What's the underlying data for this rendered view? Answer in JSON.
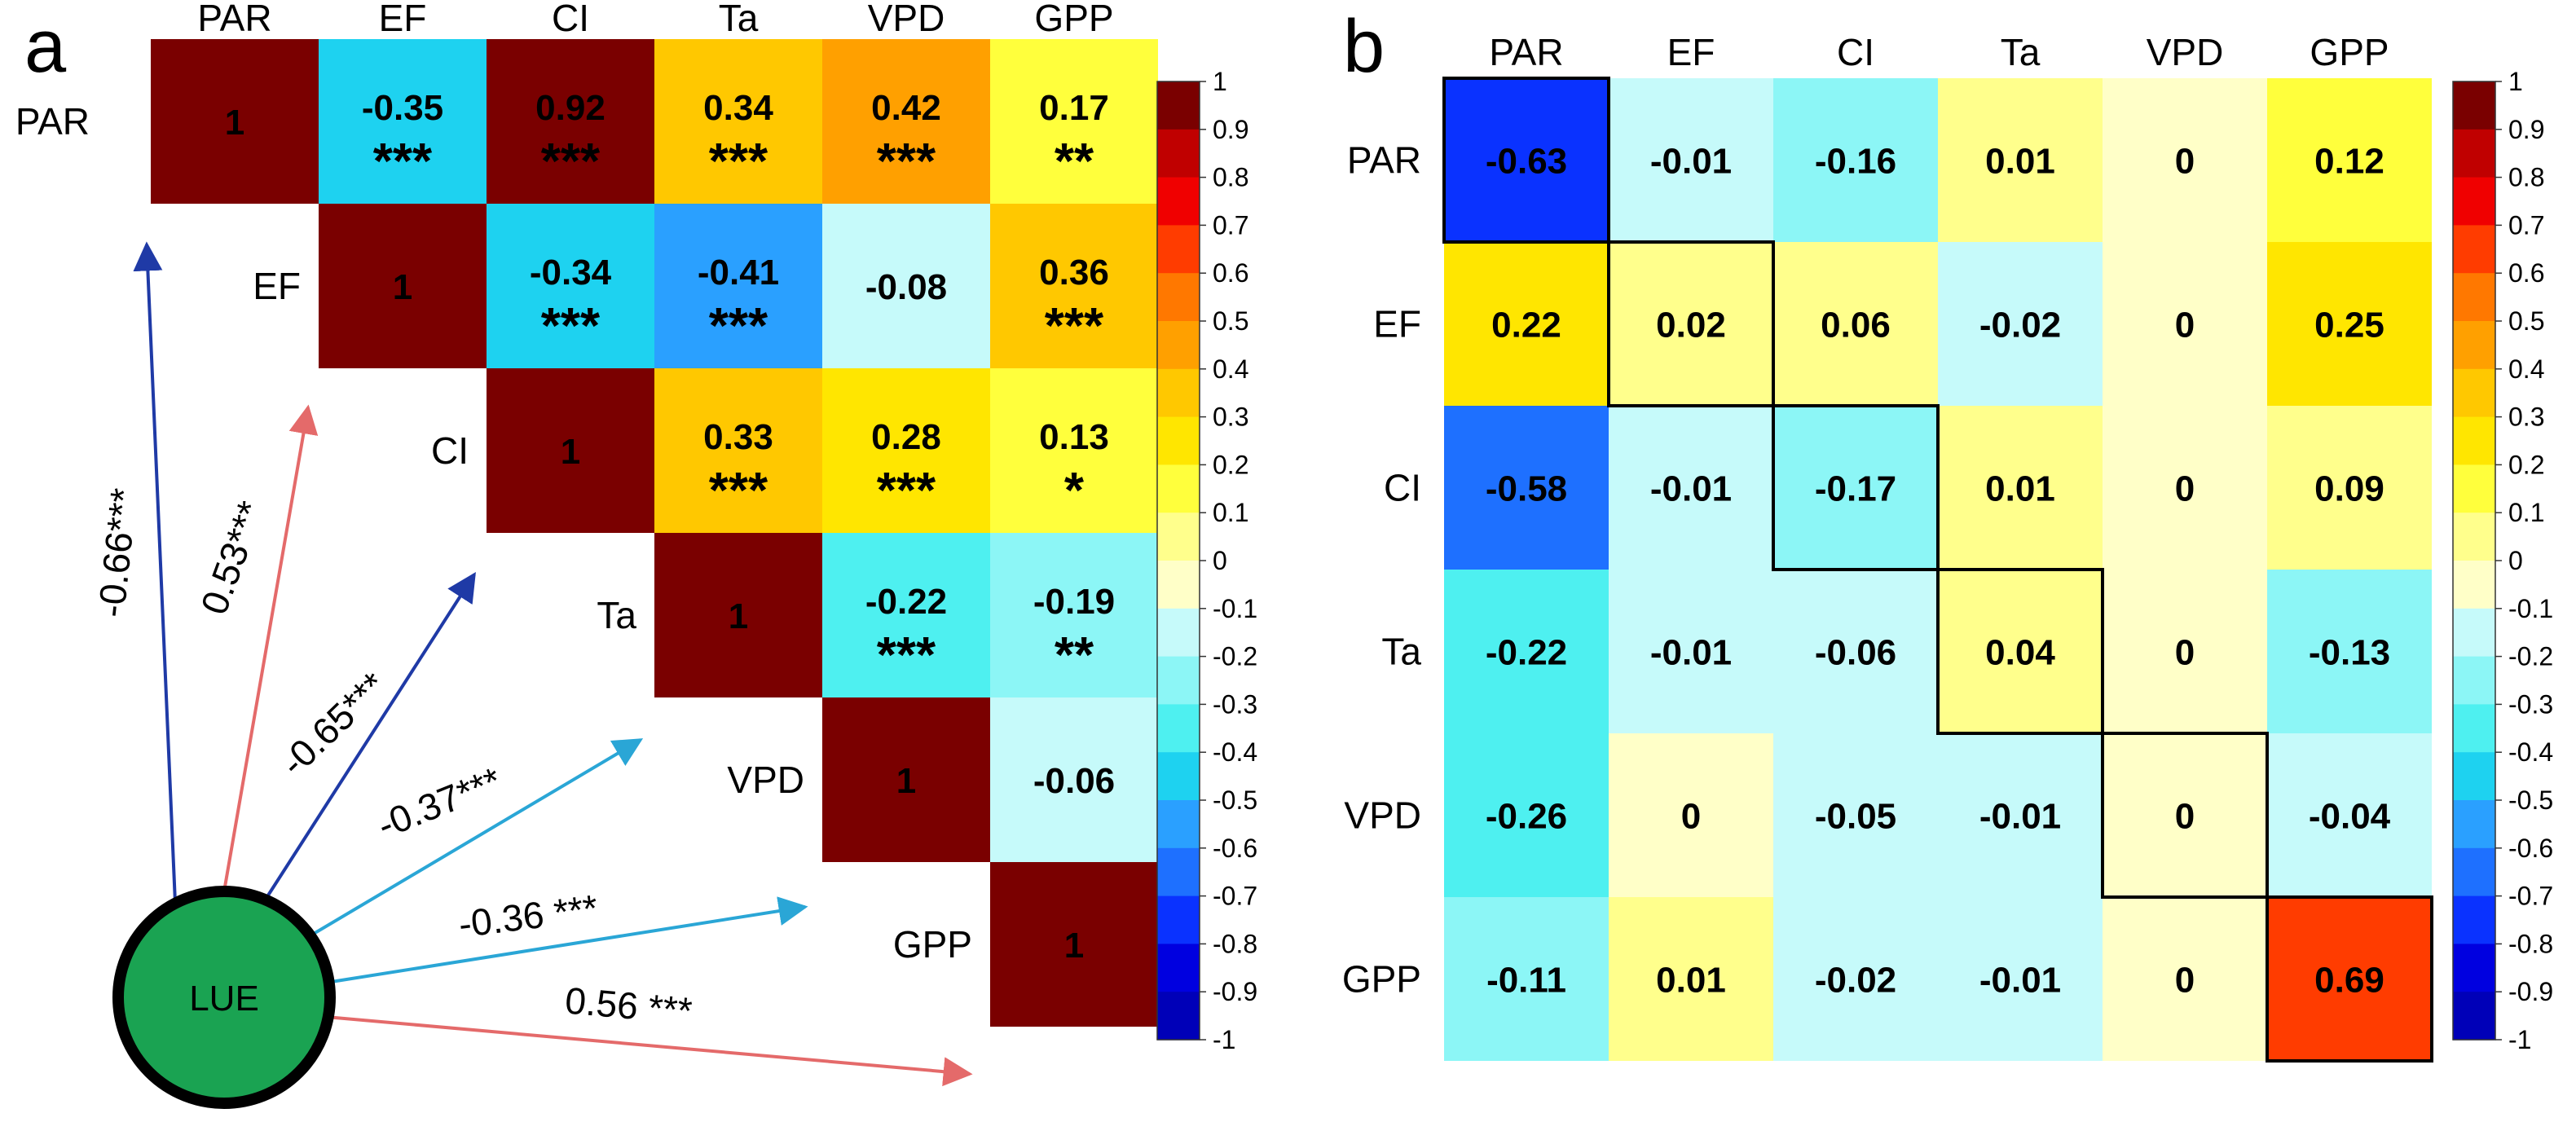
{
  "figure": {
    "panels": [
      "a",
      "b"
    ]
  },
  "chart_data": [
    {
      "panel": "a",
      "type": "heatmap",
      "title": "",
      "variables": [
        "PAR",
        "EF",
        "CI",
        "Ta",
        "VPD",
        "GPP"
      ],
      "shape": "upper-triangle",
      "cells": [
        {
          "row": 0,
          "col": 0,
          "value": 1,
          "label": "1",
          "stars": ""
        },
        {
          "row": 0,
          "col": 1,
          "value": -0.35,
          "label": "-0.35",
          "stars": "***"
        },
        {
          "row": 0,
          "col": 2,
          "value": 0.92,
          "label": "0.92",
          "stars": "***"
        },
        {
          "row": 0,
          "col": 3,
          "value": 0.34,
          "label": "0.34",
          "stars": "***"
        },
        {
          "row": 0,
          "col": 4,
          "value": 0.42,
          "label": "0.42",
          "stars": "***"
        },
        {
          "row": 0,
          "col": 5,
          "value": 0.17,
          "label": "0.17",
          "stars": "**"
        },
        {
          "row": 1,
          "col": 1,
          "value": 1,
          "label": "1",
          "stars": ""
        },
        {
          "row": 1,
          "col": 2,
          "value": -0.34,
          "label": "-0.34",
          "stars": "***"
        },
        {
          "row": 1,
          "col": 3,
          "value": -0.41,
          "label": "-0.41",
          "stars": "***"
        },
        {
          "row": 1,
          "col": 4,
          "value": -0.08,
          "label": "-0.08",
          "stars": ""
        },
        {
          "row": 1,
          "col": 5,
          "value": 0.36,
          "label": "0.36",
          "stars": "***"
        },
        {
          "row": 2,
          "col": 2,
          "value": 1,
          "label": "1",
          "stars": ""
        },
        {
          "row": 2,
          "col": 3,
          "value": 0.33,
          "label": "0.33",
          "stars": "***"
        },
        {
          "row": 2,
          "col": 4,
          "value": 0.28,
          "label": "0.28",
          "stars": "***"
        },
        {
          "row": 2,
          "col": 5,
          "value": 0.13,
          "label": "0.13",
          "stars": "*"
        },
        {
          "row": 3,
          "col": 3,
          "value": 1,
          "label": "1",
          "stars": ""
        },
        {
          "row": 3,
          "col": 4,
          "value": -0.22,
          "label": "-0.22",
          "stars": "***"
        },
        {
          "row": 3,
          "col": 5,
          "value": -0.19,
          "label": "-0.19",
          "stars": "**"
        },
        {
          "row": 4,
          "col": 4,
          "value": 1,
          "label": "1",
          "stars": ""
        },
        {
          "row": 4,
          "col": 5,
          "value": -0.06,
          "label": "-0.06",
          "stars": ""
        },
        {
          "row": 5,
          "col": 5,
          "value": 1,
          "label": "1",
          "stars": ""
        }
      ],
      "diagram": {
        "source": "LUE",
        "edges": [
          {
            "target": "PAR",
            "label": "-0.66***",
            "value": -0.66,
            "color": "#1f3aa6"
          },
          {
            "target": "EF",
            "label": "0.53***",
            "value": 0.53,
            "color": "#e46a6a"
          },
          {
            "target": "CI",
            "label": "-0.65***",
            "value": -0.65,
            "color": "#1f3aa6"
          },
          {
            "target": "Ta",
            "label": "-0.37***",
            "value": -0.37,
            "color": "#2aa6d6"
          },
          {
            "target": "VPD",
            "label": "-0.36 ***",
            "value": -0.36,
            "color": "#2aa6d6"
          },
          {
            "target": "GPP",
            "label": "0.56 ***",
            "value": 0.56,
            "color": "#e46a6a"
          }
        ],
        "node_color": "#1aa352"
      },
      "colorbar": {
        "range": [
          -1,
          1
        ],
        "ticks": [
          "1",
          "0.9",
          "0.8",
          "0.7",
          "0.6",
          "0.5",
          "0.4",
          "0.3",
          "0.2",
          "0.1",
          "0",
          "-0.1",
          "-0.2",
          "-0.3",
          "-0.4",
          "-0.5",
          "-0.6",
          "-0.7",
          "-0.8",
          "-0.9",
          "-1"
        ]
      }
    },
    {
      "panel": "b",
      "type": "heatmap",
      "title": "",
      "variables": [
        "PAR",
        "EF",
        "CI",
        "Ta",
        "VPD",
        "GPP"
      ],
      "shape": "full",
      "highlight": "diagonal",
      "values": [
        [
          "-0.63",
          "-0.01",
          "-0.16",
          "0.01",
          "0",
          "0.12"
        ],
        [
          "0.22",
          "0.02",
          "0.06",
          "-0.02",
          "0",
          "0.25"
        ],
        [
          "-0.58",
          "-0.01",
          "-0.17",
          "0.01",
          "0",
          "0.09"
        ],
        [
          "-0.22",
          "-0.01",
          "-0.06",
          "0.04",
          "0",
          "-0.13"
        ],
        [
          "-0.26",
          "0",
          "-0.05",
          "-0.01",
          "0",
          "-0.04"
        ],
        [
          "-0.11",
          "0.01",
          "-0.02",
          "-0.01",
          "0",
          "0.69"
        ]
      ],
      "colorbar": {
        "range": [
          -1,
          1
        ],
        "ticks": [
          "1",
          "0.9",
          "0.8",
          "0.7",
          "0.6",
          "0.5",
          "0.4",
          "0.3",
          "0.2",
          "0.1",
          "0",
          "-0.1",
          "-0.2",
          "-0.3",
          "-0.4",
          "-0.5",
          "-0.6",
          "-0.7",
          "-0.8",
          "-0.9",
          "-1"
        ]
      }
    }
  ],
  "palette": {
    "bins": [
      "#00008b",
      "#0000b8",
      "#0000e0",
      "#0a32ff",
      "#1e70ff",
      "#2aa0ff",
      "#1ed2f0",
      "#4ef0f0",
      "#8cf6f6",
      "#c6fafa",
      "#ffffc8",
      "#ffff8c",
      "#ffff3c",
      "#ffe600",
      "#ffc800",
      "#ffa000",
      "#ff7800",
      "#ff3c00",
      "#f00000",
      "#c00000",
      "#7a0000"
    ]
  }
}
